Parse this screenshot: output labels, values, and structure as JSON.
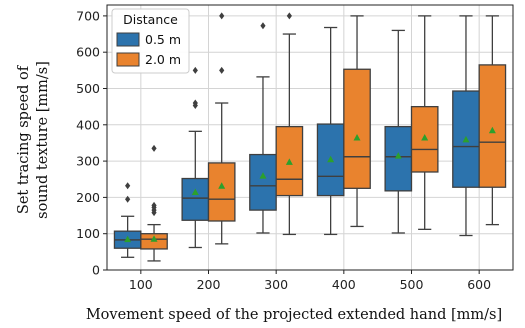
{
  "chart_data": {
    "type": "box",
    "xlabel": "Movement speed of the projected extended hand [mm/s]",
    "ylabel_lines": [
      "Set tracing speed of",
      "sound texture [mm/s]"
    ],
    "ylim": [
      0,
      730
    ],
    "yticks": [
      0,
      100,
      200,
      300,
      400,
      500,
      600,
      700
    ],
    "categories": [
      "100",
      "200",
      "300",
      "400",
      "500",
      "600"
    ],
    "grid": true,
    "legend": {
      "title": "Distance",
      "position": "top-left"
    },
    "series": [
      {
        "name": "0.5 m",
        "color": "#2c73ad",
        "boxes": [
          {
            "whislo": 35,
            "q1": 60,
            "med": 83,
            "q3": 107,
            "whishi": 148,
            "mean": 85,
            "fliers": [
              195,
              232
            ]
          },
          {
            "whislo": 62,
            "q1": 137,
            "med": 198,
            "q3": 252,
            "whishi": 382,
            "mean": 215,
            "fliers": [
              453,
              460,
              550
            ]
          },
          {
            "whislo": 102,
            "q1": 165,
            "med": 232,
            "q3": 318,
            "whishi": 532,
            "mean": 260,
            "fliers": [
              673
            ]
          },
          {
            "whislo": 98,
            "q1": 205,
            "med": 258,
            "q3": 402,
            "whishi": 668,
            "mean": 305,
            "fliers": []
          },
          {
            "whislo": 102,
            "q1": 218,
            "med": 312,
            "q3": 395,
            "whishi": 660,
            "mean": 315,
            "fliers": []
          },
          {
            "whislo": 95,
            "q1": 228,
            "med": 340,
            "q3": 493,
            "whishi": 700,
            "mean": 360,
            "fliers": []
          }
        ]
      },
      {
        "name": "2.0 m",
        "color": "#e9832e",
        "boxes": [
          {
            "whislo": 25,
            "q1": 58,
            "med": 85,
            "q3": 100,
            "whishi": 125,
            "mean": 86,
            "fliers": [
              158,
              165,
              172,
              178,
              335
            ]
          },
          {
            "whislo": 72,
            "q1": 135,
            "med": 195,
            "q3": 295,
            "whishi": 460,
            "mean": 232,
            "fliers": [
              550,
              700
            ]
          },
          {
            "whislo": 98,
            "q1": 205,
            "med": 250,
            "q3": 395,
            "whishi": 650,
            "mean": 298,
            "fliers": [
              700
            ]
          },
          {
            "whislo": 120,
            "q1": 225,
            "med": 312,
            "q3": 553,
            "whishi": 700,
            "mean": 365,
            "fliers": []
          },
          {
            "whislo": 112,
            "q1": 270,
            "med": 332,
            "q3": 450,
            "whishi": 700,
            "mean": 365,
            "fliers": []
          },
          {
            "whislo": 125,
            "q1": 228,
            "med": 352,
            "q3": 565,
            "whishi": 700,
            "mean": 385,
            "fliers": []
          }
        ]
      }
    ]
  },
  "style": {
    "background": "#ffffff",
    "grid_color": "#d4d4d4",
    "frame_color": "#222222",
    "line_color": "#3f3f3f",
    "mean_color": "#2ca02c",
    "flier_color": "#3f3f3f"
  }
}
